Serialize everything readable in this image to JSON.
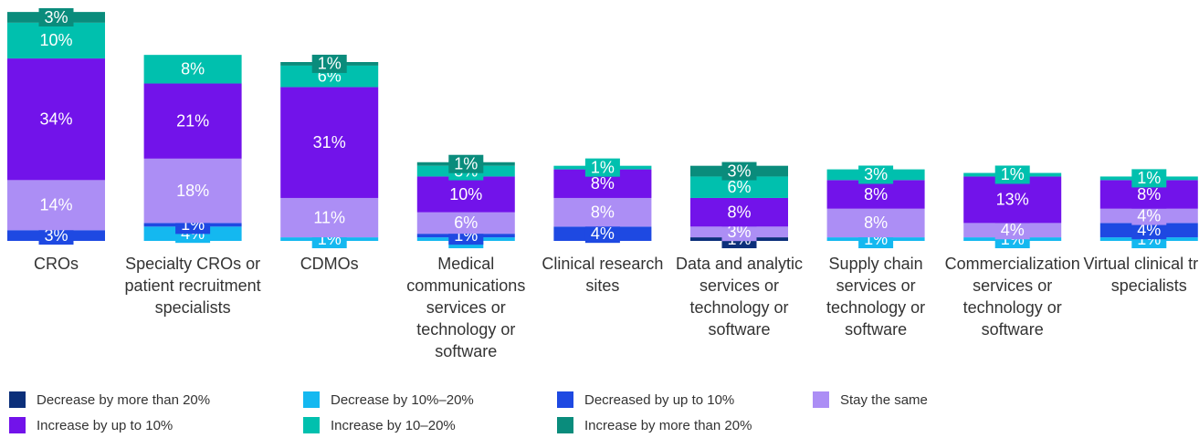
{
  "chart_data": {
    "type": "stacked-bar",
    "categories": [
      "CROs",
      "Specialty CROs or patient recruitment specialists",
      "CDMOs",
      "Medical communications services or technology or software",
      "Clinical research sites",
      "Data and analytic services or technology or software",
      "Supply chain services or technology or software",
      "Commercialization services or technology or software",
      "Virtual clinical trial specialists"
    ],
    "series": [
      {
        "name": "Decrease by more than 20%",
        "color": "#0b2f7a",
        "values": [
          null,
          null,
          null,
          null,
          null,
          1,
          null,
          null,
          null
        ],
        "value_labels": [
          null,
          null,
          null,
          null,
          null,
          "1%",
          null,
          null,
          null
        ]
      },
      {
        "name": "Decrease by 10%–20%",
        "color": "#14b8f0",
        "values": [
          null,
          4,
          1,
          1,
          null,
          null,
          1,
          1,
          1
        ],
        "value_labels": [
          null,
          "4%",
          "1%",
          "1%",
          null,
          null,
          "1%",
          "1%",
          "1%"
        ]
      },
      {
        "name": "Decreased by up to 10%",
        "color": "#1e49e2",
        "values": [
          3,
          1,
          null,
          1,
          4,
          null,
          null,
          null,
          4
        ],
        "value_labels": [
          "3%",
          "1%",
          null,
          "1%",
          "4%",
          null,
          null,
          null,
          "4%"
        ]
      },
      {
        "name": "Stay the same",
        "color": "#ac8ef5",
        "values": [
          14,
          18,
          11,
          6,
          8,
          3,
          8,
          4,
          4
        ],
        "value_labels": [
          "14%",
          "18%",
          "11%",
          "6%",
          "8%",
          "3%",
          "8%",
          "4%",
          "4%"
        ]
      },
      {
        "name": "Increase by up to 10%",
        "color": "#7213ea",
        "values": [
          34,
          21,
          31,
          10,
          8,
          8,
          8,
          13,
          8
        ],
        "value_labels": [
          "34%",
          "21%",
          "31%",
          "10%",
          "8%",
          "8%",
          "8%",
          "13%",
          "8%"
        ]
      },
      {
        "name": "Increase by 10–20%",
        "color": "#00c0ae",
        "values": [
          10,
          8,
          6,
          3,
          1,
          6,
          3,
          1,
          1
        ],
        "value_labels": [
          "10%",
          "8%",
          "6%",
          "3%",
          "1%",
          "6%",
          "3%",
          "1%",
          "1%"
        ]
      },
      {
        "name": "Increase by more than 20%",
        "color": "#0a8c7c",
        "values": [
          3,
          null,
          1,
          1,
          null,
          3,
          null,
          null,
          null
        ],
        "value_labels": [
          "3%",
          null,
          "1%",
          "1%",
          null,
          "3%",
          null,
          null,
          null
        ]
      }
    ]
  }
}
